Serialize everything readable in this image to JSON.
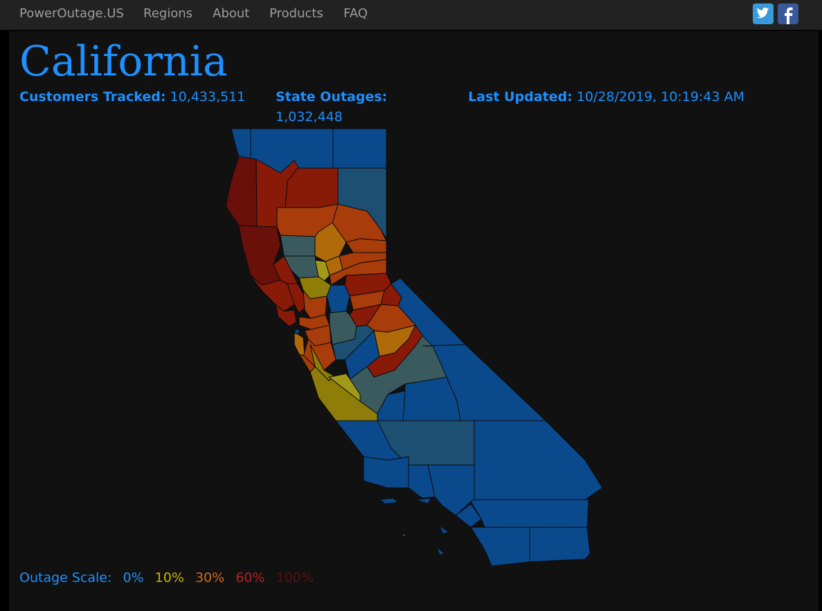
{
  "nav": {
    "brand": "PowerOutage.US",
    "links": [
      "Regions",
      "About",
      "Products",
      "FAQ"
    ]
  },
  "social": {
    "twitter": "twitter-icon",
    "facebook": "facebook-icon"
  },
  "page": {
    "title": "California"
  },
  "stats": {
    "customers_label": "Customers Tracked:",
    "customers_value": "10,433,511",
    "outages_label": "State Outages:",
    "outages_value": "1,032,448",
    "updated_label": "Last Updated:",
    "updated_value": "10/28/2019, 10:19:43 AM"
  },
  "scale": {
    "label": "Outage Scale:",
    "steps": [
      {
        "text": "0%",
        "color": "#1e90ff"
      },
      {
        "text": "10%",
        "color": "#c8b400"
      },
      {
        "text": "30%",
        "color": "#d2691e"
      },
      {
        "text": "60%",
        "color": "#b22222"
      },
      {
        "text": "100%",
        "color": "#5a1010"
      }
    ]
  },
  "colors": {
    "deep_blue": "#0a4a8c",
    "slate": "#1c4f72",
    "teal": "#3a5a5e",
    "olive": "#8f7d0a",
    "olive_light": "#a09a18",
    "amber": "#b06a0a",
    "orange": "#a83c0a",
    "red": "#8a1a08",
    "dark_red": "#6a100a"
  }
}
